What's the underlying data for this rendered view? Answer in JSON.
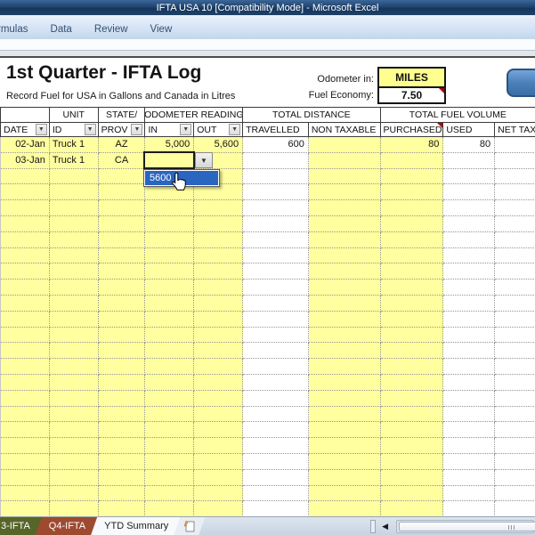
{
  "window": {
    "title": "IFTA USA 10  [Compatibility Mode]  -  Microsoft Excel"
  },
  "ribbon": {
    "tabs": [
      "rmulas",
      "Data",
      "Review",
      "View"
    ]
  },
  "header": {
    "title": "1st Quarter - IFTA Log",
    "subtitle": "Record Fuel for USA in Gallons and Canada in Litres",
    "odometer_label": "Odometer in:",
    "odometer_value": "MILES",
    "fuel_economy_label": "Fuel Economy:",
    "fuel_economy_value": "7.50"
  },
  "table": {
    "groups": [
      {
        "label": "",
        "span": 1
      },
      {
        "label": "UNIT",
        "span": 1
      },
      {
        "label": "STATE/",
        "span": 1
      },
      {
        "label": "ODOMETER READING",
        "span": 2
      },
      {
        "label": "TOTAL DISTANCE",
        "span": 2
      },
      {
        "label": "TOTAL FUEL VOLUME",
        "span": 3
      }
    ],
    "columns": [
      {
        "label": "DATE",
        "filter": true
      },
      {
        "label": "ID",
        "filter": true
      },
      {
        "label": "PROV",
        "filter": true
      },
      {
        "label": "IN",
        "filter": true
      },
      {
        "label": "OUT",
        "filter": true
      },
      {
        "label": "TRAVELLED",
        "filter": false
      },
      {
        "label": "NON TAXABLE",
        "filter": false
      },
      {
        "label": "PURCHASED",
        "filter": false,
        "note": true
      },
      {
        "label": "USED",
        "filter": false
      },
      {
        "label": "NET TAX",
        "filter": false
      }
    ],
    "rows": [
      [
        "02-Jan",
        "Truck 1",
        "AZ",
        "5,000",
        "5,600",
        "600",
        "",
        "80",
        "80",
        ""
      ],
      [
        "03-Jan",
        "Truck 1",
        "CA",
        "",
        "",
        "",
        "",
        "",
        "",
        ""
      ]
    ]
  },
  "dropdown": {
    "items": [
      "5600"
    ]
  },
  "sheet_tabs": {
    "tabs": [
      "3-IFTA",
      "Q4-IFTA",
      "YTD Summary"
    ],
    "active": "YTD Summary"
  },
  "colors": {
    "cell_yellow": "#ffffa0",
    "odometer_yellow": "#ffff8f",
    "selection_blue": "#2a65c0",
    "tab_q3_green": "#566629",
    "tab_q4_red": "#9e4a31",
    "titlebar_blue": "#1e4166",
    "button_blue": "#4a80b8",
    "note_red": "#b40000"
  }
}
